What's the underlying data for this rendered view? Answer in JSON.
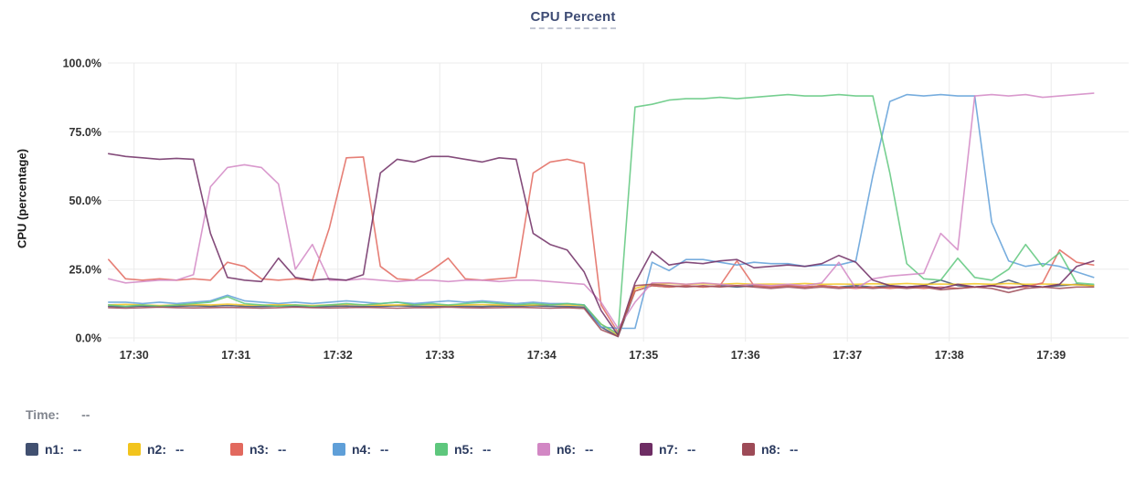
{
  "title": "CPU Percent",
  "y_axis": {
    "label": "CPU (percentage)",
    "tick_labels": [
      "100.0%",
      "75.0%",
      "50.0%",
      "25.0%",
      "0.0%"
    ],
    "tick_values": [
      100,
      75,
      50,
      25,
      0
    ]
  },
  "x_axis": {
    "tick_labels": [
      "17:30",
      "17:31",
      "17:32",
      "17:33",
      "17:34",
      "17:35",
      "17:36",
      "17:37",
      "17:38",
      "17:39"
    ]
  },
  "time_row": {
    "label": "Time:",
    "value": "--"
  },
  "legend": {
    "items": [
      {
        "name": "n1",
        "label": "n1:",
        "value": "--",
        "color": "#415070"
      },
      {
        "name": "n2",
        "label": "n2:",
        "value": "--",
        "color": "#f2c41d"
      },
      {
        "name": "n3",
        "label": "n3:",
        "value": "--",
        "color": "#e2695e"
      },
      {
        "name": "n4",
        "label": "n4:",
        "value": "--",
        "color": "#5f9fd8"
      },
      {
        "name": "n5",
        "label": "n5:",
        "value": "--",
        "color": "#5ec77d"
      },
      {
        "name": "n6",
        "label": "n6:",
        "value": "--",
        "color": "#d287c4"
      },
      {
        "name": "n7",
        "label": "n7:",
        "value": "--",
        "color": "#6e2d64"
      },
      {
        "name": "n8",
        "label": "n8:",
        "value": "--",
        "color": "#9d4b57"
      }
    ]
  },
  "chart_data": {
    "type": "line",
    "title": "CPU Percent",
    "ylabel": "CPU (percentage)",
    "ylim": [
      0,
      100
    ],
    "grid": true,
    "x_unit": "minutes_after_17:30",
    "x_start_min": -0.25,
    "x_step_min": 0.166667,
    "x_tick_minutes": [
      0,
      1,
      2,
      3,
      4,
      5,
      6,
      7,
      8,
      9
    ],
    "series": [
      {
        "name": "n1",
        "color": "#415070",
        "values": [
          11.5,
          11.3,
          11.6,
          11.4,
          11.5,
          11.7,
          11.5,
          11.8,
          11.5,
          11.4,
          11.6,
          11.5,
          11.3,
          11.5,
          11.6,
          11.4,
          11.5,
          11.7,
          11.5,
          11.4,
          11.6,
          11.5,
          11.4,
          11.6,
          11.5,
          11.7,
          11.5,
          11.4,
          11.2,
          4,
          0.5,
          17,
          19,
          18.5,
          19,
          18.5,
          19,
          18.5,
          19,
          18.5,
          19,
          18.5,
          19,
          18.5,
          19,
          18.5,
          19,
          18.5,
          19,
          21,
          19,
          18.5,
          19,
          21,
          19,
          18.5,
          19,
          19.5,
          19
        ]
      },
      {
        "name": "n2",
        "color": "#f2c41d",
        "values": [
          12,
          12.2,
          12,
          11.8,
          12,
          12.1,
          12,
          12.3,
          12,
          11.9,
          12.1,
          12,
          11.8,
          12,
          12.2,
          12,
          11.9,
          12,
          12.1,
          12,
          11.8,
          12,
          12.1,
          12,
          11.9,
          12,
          12.2,
          12,
          11.8,
          5,
          1,
          18,
          19.5,
          19.8,
          19.5,
          19.7,
          19.5,
          19.8,
          19.5,
          19.6,
          19.5,
          19.8,
          19.5,
          19.6,
          19.5,
          19.7,
          19.5,
          19.8,
          19.5,
          19.6,
          19.5,
          19.7,
          19.5,
          19.8,
          19.5,
          19.6,
          19.5,
          19.3,
          19
        ]
      },
      {
        "name": "n3",
        "color": "#e2695e",
        "values": [
          28.5,
          21.5,
          21,
          21.5,
          21,
          21.5,
          21,
          27.5,
          26,
          21.5,
          21,
          21.5,
          21,
          40,
          65.5,
          65.8,
          26,
          21.5,
          21,
          24.5,
          29,
          21.5,
          21,
          21.5,
          22,
          60,
          64,
          65,
          63.5,
          12,
          2,
          17,
          19,
          18.5,
          19,
          18.5,
          19,
          28,
          19,
          18.5,
          19,
          18.5,
          19,
          18.5,
          18,
          18.5,
          18,
          18.5,
          18,
          18.5,
          18,
          18.5,
          19,
          18.5,
          18.5,
          20,
          32,
          27.5,
          26.5
        ]
      },
      {
        "name": "n4",
        "color": "#5f9fd8",
        "values": [
          13,
          13,
          12.5,
          13,
          12.5,
          13,
          13.5,
          15.5,
          13.5,
          13,
          12.5,
          13,
          12.5,
          13,
          13.5,
          13,
          12.5,
          13,
          12.5,
          13,
          13.5,
          13,
          13.5,
          13,
          12.5,
          13,
          12.5,
          12.5,
          12,
          4,
          3.5,
          3.5,
          27.5,
          24.5,
          28.5,
          28.5,
          27.5,
          26.5,
          27.5,
          27,
          27,
          26,
          26.5,
          26.5,
          28,
          59,
          86,
          88.5,
          88,
          88.5,
          88,
          88,
          42,
          28,
          26,
          27,
          26,
          24,
          22
        ]
      },
      {
        "name": "n5",
        "color": "#5ec77d",
        "values": [
          12,
          11.5,
          12,
          11.5,
          12,
          12.5,
          13,
          15,
          12.5,
          12,
          11.5,
          12,
          11.5,
          12,
          12.5,
          12,
          12.5,
          13,
          12,
          12.5,
          12,
          12.5,
          13,
          12.5,
          12,
          12.5,
          12,
          12.5,
          12,
          5,
          1.5,
          84,
          85,
          86.5,
          87,
          87,
          87.5,
          87,
          87.5,
          88,
          88.5,
          88,
          88,
          88.5,
          88,
          88,
          60,
          27,
          21.5,
          21,
          29,
          22,
          21,
          25,
          34,
          26,
          31,
          20,
          19.5
        ]
      },
      {
        "name": "n6",
        "color": "#d287c4",
        "values": [
          21.5,
          20,
          20.5,
          21,
          21,
          23,
          55,
          62,
          63,
          62,
          56,
          25,
          34,
          21,
          21,
          21.5,
          21,
          20.5,
          21,
          21,
          20.5,
          21,
          21,
          20.5,
          21,
          21,
          20.5,
          20,
          19.5,
          13,
          3.5,
          13,
          20,
          20,
          19.5,
          20,
          19.5,
          19,
          19.5,
          19,
          19.5,
          19,
          20,
          27.5,
          18,
          21.5,
          22.5,
          23,
          23.5,
          38,
          32,
          88,
          88.5,
          88,
          88.5,
          87.5,
          88,
          88.5,
          89
        ]
      },
      {
        "name": "n7",
        "color": "#6e2d64",
        "values": [
          67,
          66,
          65.5,
          65,
          65.3,
          65,
          38,
          22,
          21,
          20.5,
          29,
          22,
          21,
          21.5,
          21,
          23,
          60,
          65,
          64,
          66,
          66,
          65,
          64,
          65.5,
          65,
          38,
          34,
          32,
          24,
          10,
          1,
          20,
          31.5,
          26.5,
          27.5,
          27,
          28,
          28.5,
          25.5,
          26,
          26.5,
          26,
          27,
          30,
          27.5,
          21,
          19,
          18.5,
          19,
          18,
          19.5,
          18.5,
          19,
          18,
          19,
          18.5,
          19.5,
          26,
          28
        ]
      },
      {
        "name": "n8",
        "color": "#9d4b57",
        "values": [
          11,
          10.8,
          11,
          11.2,
          11,
          10.9,
          11,
          11.1,
          11,
          10.8,
          11,
          11.2,
          11,
          10.9,
          11,
          11.1,
          11,
          10.8,
          11,
          11,
          11.2,
          11,
          10.9,
          11,
          11.1,
          11,
          10.8,
          11,
          10.7,
          3,
          0.5,
          19,
          19.5,
          19,
          18.5,
          19,
          18.5,
          19,
          18.5,
          18,
          18.5,
          18,
          18.5,
          18,
          18.5,
          18,
          18.5,
          18,
          18.5,
          17.5,
          18,
          18.5,
          18,
          16.5,
          18,
          18.5,
          18,
          18.5,
          18.5
        ]
      }
    ]
  }
}
